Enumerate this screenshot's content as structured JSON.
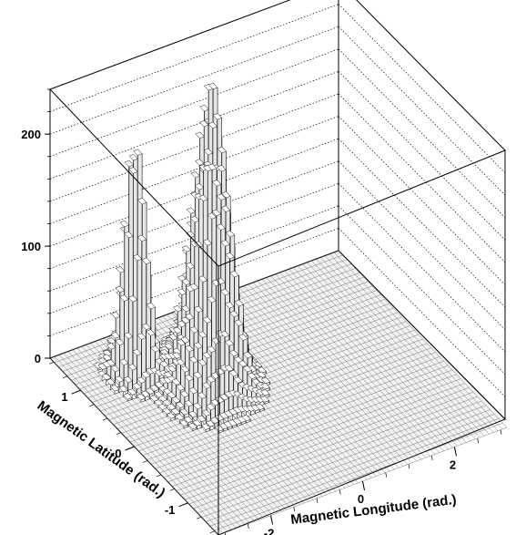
{
  "chart_data": {
    "type": "lego3d",
    "title": "",
    "xlabel": "Magnetic Longitude (rad.)",
    "ylabel": "Magnetic Latitude (rad.)",
    "zlabel": "",
    "x_ticks": [
      "-2",
      "0",
      "2"
    ],
    "x_tick_values": [
      -2,
      0,
      2
    ],
    "y_ticks": [
      "-1",
      "0",
      "1"
    ],
    "y_tick_values": [
      -1,
      0,
      1
    ],
    "z_ticks": [
      "0",
      "100",
      "200"
    ],
    "z_tick_values": [
      0,
      100,
      200
    ],
    "xlim": [
      -3.14,
      3.14
    ],
    "ylim": [
      -1.57,
      1.57
    ],
    "zlim": [
      0,
      240
    ],
    "grid": true,
    "colors": {
      "bar_face": "#ffffff",
      "bar_edge": "#000000",
      "box": "#000000",
      "grid": "#000000"
    },
    "peaks": [
      {
        "x": -2.05,
        "y": 0.95,
        "height": 185,
        "sigma_x": 0.2,
        "sigma_y": 0.13
      },
      {
        "x": -1.3,
        "y": 0.3,
        "height": 85,
        "sigma_x": 0.3,
        "sigma_y": 0.18
      },
      {
        "x": -0.85,
        "y": 0.55,
        "height": 235,
        "sigma_x": 0.3,
        "sigma_y": 0.22
      }
    ]
  }
}
